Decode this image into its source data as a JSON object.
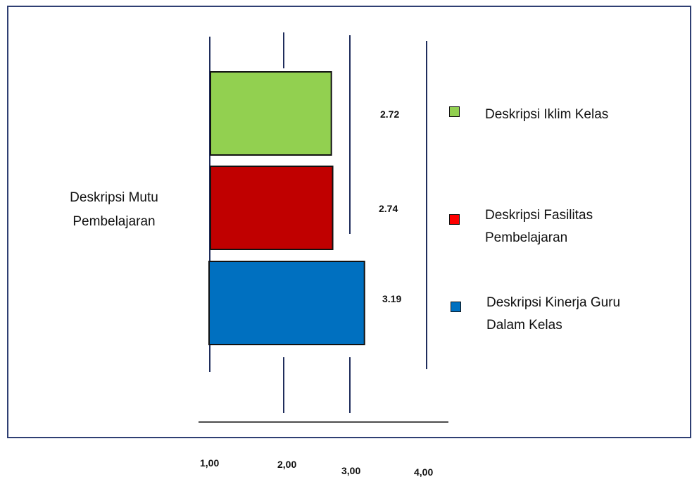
{
  "chart_data": {
    "type": "bar",
    "orientation": "horizontal",
    "ylabel": "Deskripsi Mutu Pembelajaran",
    "xlim": [
      1,
      4
    ],
    "x_tick_labels": [
      "1,00",
      "2,00",
      "3,00",
      "4,00"
    ],
    "series": [
      {
        "name": "Deskripsi Iklim Kelas",
        "value": 2.72,
        "label": "2.72",
        "color": "#92d050"
      },
      {
        "name": "Deskripsi Fasilitas Pembelajaran",
        "value": 2.74,
        "label": "2.74",
        "color": "#c00000"
      },
      {
        "name": "Deskripsi Kinerja Guru Dalam Kelas",
        "value": 3.19,
        "label": "3.19",
        "color": "#0070c0"
      }
    ],
    "legend_swatch_colors": [
      "#92d050",
      "#ff0000",
      "#0070c0"
    ],
    "legend_position": "right"
  }
}
